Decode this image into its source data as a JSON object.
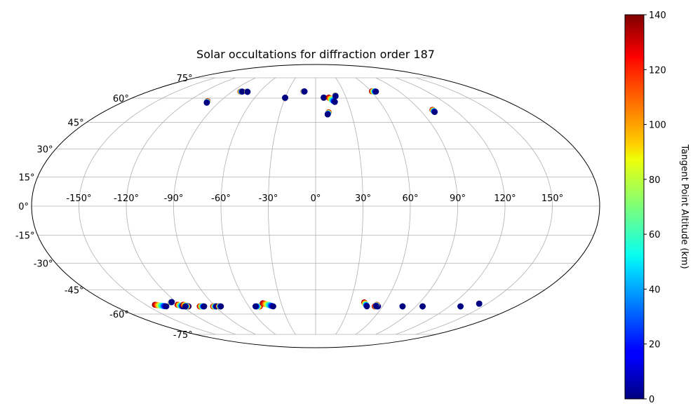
{
  "chart_data": {
    "type": "scatter",
    "projection": "mollweide",
    "title": "Solar occultations for diffraction order 187",
    "x_ticks": [
      "-150°",
      "-120°",
      "-90°",
      "-60°",
      "-30°",
      "0°",
      "30°",
      "60°",
      "90°",
      "120°",
      "150°"
    ],
    "y_ticks": [
      "-75°",
      "-60°",
      "-45°",
      "-30°",
      "-15°",
      "0°",
      "15°",
      "30°",
      "45°",
      "60°",
      "75°"
    ],
    "grid": true,
    "colorbar": {
      "label": "Tangent Point Altitude (km)",
      "colormap": "jet",
      "range": [
        0,
        140
      ],
      "ticks": [
        "0",
        "20",
        "40",
        "60",
        "80",
        "100",
        "120",
        "140"
      ]
    },
    "occultations": [
      {
        "lon_start": -102,
        "lat_start": 58,
        "lon_end": -101,
        "lat_end": 57
      },
      {
        "lon_start": -81,
        "lat_start": 64.5,
        "lon_end": -79,
        "lat_end": 64.5
      },
      {
        "lon_start": -74,
        "lat_start": 64.5,
        "lon_end": -73,
        "lat_end": 64.3
      },
      {
        "lon_start": -30,
        "lat_start": 60,
        "lon_end": -30,
        "lat_end": 60.3
      },
      {
        "lon_start": -13,
        "lat_start": 64.6,
        "lon_end": -12,
        "lat_end": 64.6
      },
      {
        "lon_start": 8,
        "lat_start": 60.2,
        "lon_end": 8,
        "lat_end": 60.4
      },
      {
        "lon_start": 13,
        "lat_start": 60.4,
        "lon_end": 18,
        "lat_end": 57.5
      },
      {
        "lon_start": 20,
        "lat_start": 61.8,
        "lon_end": 20,
        "lat_end": 61.3
      },
      {
        "lon_start": 11,
        "lat_start": 51,
        "lon_end": 10,
        "lat_end": 49.7
      },
      {
        "lon_start": 61,
        "lat_start": 64.7,
        "lon_end": 65,
        "lat_end": 64.5
      },
      {
        "lon_start": 101,
        "lat_start": 52.5,
        "lon_end": 101,
        "lat_end": 51.2
      },
      {
        "lon_start": -142,
        "lat_start": -54,
        "lon_end": -134,
        "lat_end": -55
      },
      {
        "lon_start": -125,
        "lat_start": -52.5,
        "lon_end": -124,
        "lat_end": -52.3
      },
      {
        "lon_start": -122,
        "lat_start": -54,
        "lon_end": -119,
        "lat_end": -55
      },
      {
        "lon_start": -117,
        "lat_start": -54,
        "lon_end": -114,
        "lat_end": -55
      },
      {
        "lon_start": -115,
        "lat_start": -55,
        "lon_end": -117,
        "lat_end": -55
      },
      {
        "lon_start": -104,
        "lat_start": -55,
        "lon_end": -100,
        "lat_end": -55
      },
      {
        "lon_start": -92,
        "lat_start": -55,
        "lon_end": -89,
        "lat_end": -55
      },
      {
        "lon_start": -87,
        "lat_start": -55,
        "lon_end": -85,
        "lat_end": -55
      },
      {
        "lon_start": -50,
        "lat_start": -55,
        "lon_end": -54,
        "lat_end": -55
      },
      {
        "lon_start": -46,
        "lat_start": -53,
        "lon_end": -38,
        "lat_end": -55
      },
      {
        "lon_start": 42,
        "lat_start": -52.5,
        "lon_end": 46,
        "lat_end": -55
      },
      {
        "lon_start": 53,
        "lat_start": -55,
        "lon_end": 56,
        "lat_end": -55
      },
      {
        "lon_start": 54,
        "lat_start": -54,
        "lon_end": 54,
        "lat_end": -54.8
      },
      {
        "lon_start": 78,
        "lat_start": -55,
        "lon_end": 78,
        "lat_end": -55
      },
      {
        "lon_start": 96,
        "lat_start": -55,
        "lon_end": 96,
        "lat_end": -55
      },
      {
        "lon_start": 130,
        "lat_start": -55,
        "lon_end": 130,
        "lat_end": -55
      },
      {
        "lon_start": 143,
        "lat_start": -53.3,
        "lon_end": 143,
        "lat_end": -53.3
      }
    ]
  }
}
